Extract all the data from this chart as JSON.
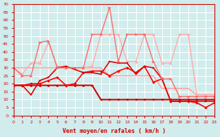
{
  "title": "",
  "xlabel": "Vent moyen/en rafales ( km/h )",
  "ylabel": "",
  "bg_color": "#d0ecec",
  "grid_color": "#ffffff",
  "x": [
    0,
    1,
    2,
    3,
    4,
    5,
    6,
    7,
    8,
    9,
    10,
    11,
    12,
    13,
    14,
    15,
    16,
    17,
    18,
    19,
    20,
    21,
    22,
    23
  ],
  "lines": [
    {
      "y": [
        19,
        19,
        19,
        19,
        19,
        19,
        19,
        19,
        19,
        19,
        10,
        10,
        10,
        10,
        10,
        10,
        10,
        10,
        10,
        10,
        10,
        10,
        10,
        10
      ],
      "color": "#cc0000",
      "lw": 1.5,
      "marker": "o",
      "ms": 2
    },
    {
      "y": [
        30,
        30,
        30,
        30,
        30,
        30,
        30,
        30,
        30,
        30,
        30,
        25,
        25,
        25,
        25,
        25,
        25,
        17,
        17,
        17,
        17,
        13,
        13,
        13
      ],
      "color": "#ff9999",
      "lw": 1.0,
      "marker": "",
      "ms": 0
    },
    {
      "y": [
        19,
        19,
        20,
        20,
        22,
        24,
        19,
        20,
        27,
        28,
        28,
        25,
        28,
        30,
        27,
        31,
        21,
        23,
        9,
        9,
        9,
        8,
        5,
        8
      ],
      "color": "#ff0000",
      "lw": 1.2,
      "marker": "D",
      "ms": 2
    },
    {
      "y": [
        30,
        26,
        33,
        33,
        46,
        31,
        30,
        30,
        30,
        31,
        51,
        51,
        51,
        34,
        34,
        51,
        51,
        33,
        33,
        51,
        51,
        13,
        13,
        13
      ],
      "color": "#ffaaaa",
      "lw": 1.0,
      "marker": "^",
      "ms": 2.5
    },
    {
      "y": [
        19,
        19,
        13,
        22,
        24,
        30,
        31,
        29,
        27,
        27,
        26,
        34,
        33,
        33,
        26,
        31,
        30,
        23,
        9,
        9,
        9,
        9,
        9,
        9
      ],
      "color": "#dd0000",
      "lw": 1.2,
      "marker": "s",
      "ms": 2
    },
    {
      "y": [
        30,
        25,
        25,
        46,
        47,
        30,
        30,
        30,
        30,
        51,
        51,
        68,
        34,
        51,
        51,
        51,
        34,
        23,
        23,
        12,
        12,
        12,
        12,
        12
      ],
      "color": "#ff6666",
      "lw": 1.0,
      "marker": ">",
      "ms": 2.5
    }
  ],
  "ylim": [
    0,
    70
  ],
  "yticks": [
    0,
    5,
    10,
    15,
    20,
    25,
    30,
    35,
    40,
    45,
    50,
    55,
    60,
    65,
    70
  ],
  "xlim": [
    0,
    23
  ],
  "xticks": [
    0,
    1,
    2,
    3,
    4,
    5,
    6,
    7,
    8,
    9,
    10,
    11,
    12,
    13,
    14,
    15,
    16,
    17,
    18,
    19,
    20,
    21,
    22,
    23
  ]
}
